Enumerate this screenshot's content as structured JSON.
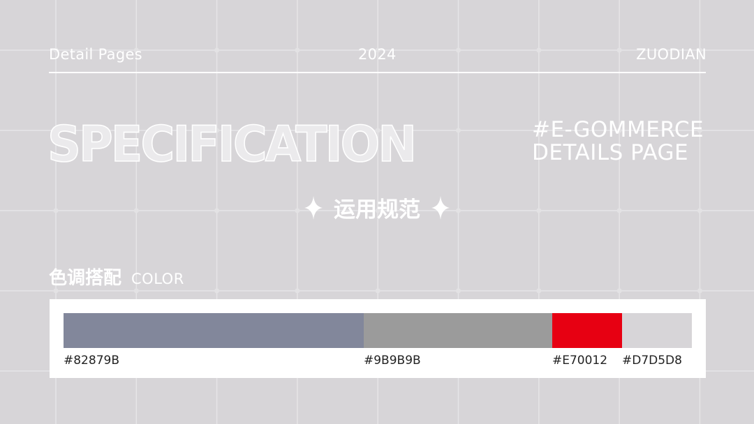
{
  "header": {
    "left": "Detail Pages",
    "center": "2024",
    "right": "ZUODIAN"
  },
  "title": "SPECIFICATION",
  "tagline": {
    "line1": "#E-GOMMERCE",
    "line2": "DETAILS PAGE"
  },
  "subtitle": "运用规范",
  "section": {
    "title": "色调搭配",
    "subtitle": "COLOR"
  },
  "palette": [
    {
      "code": "#82879B",
      "color": "#82879B",
      "share": 43
    },
    {
      "code": "#9B9B9B",
      "color": "#9B9B9B",
      "share": 27
    },
    {
      "code": "#E70012",
      "color": "#E70012",
      "share": 10
    },
    {
      "code": "#D7D5D8",
      "color": "#D7D5D8",
      "share": 10
    }
  ],
  "background_color": "#D7D5D8"
}
